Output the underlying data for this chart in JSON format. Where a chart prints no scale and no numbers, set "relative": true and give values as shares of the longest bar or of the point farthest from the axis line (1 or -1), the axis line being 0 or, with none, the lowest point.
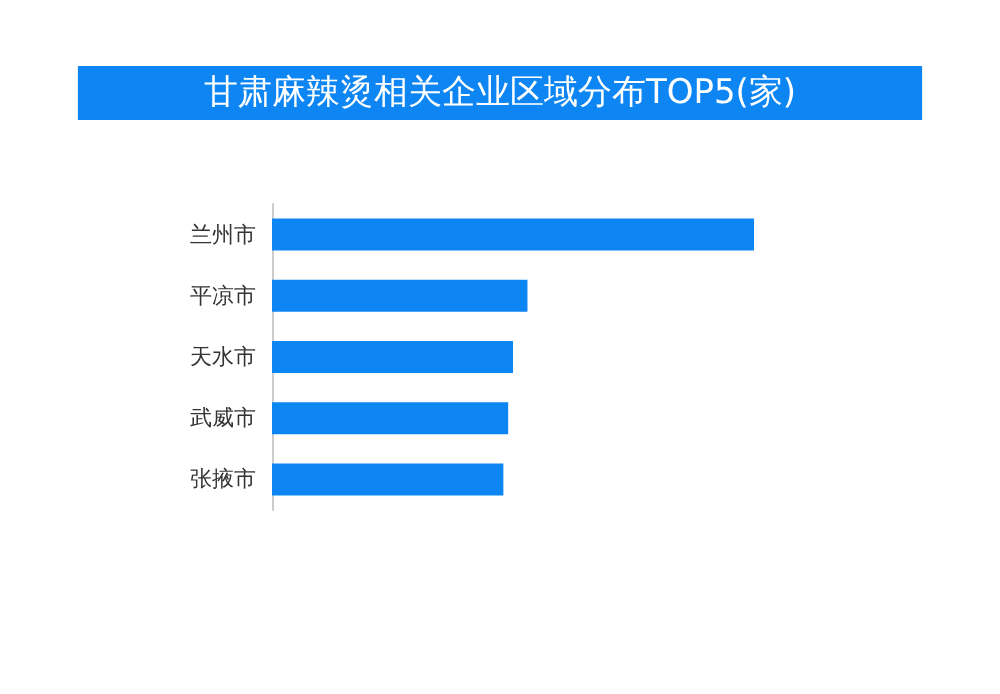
{
  "chart_data": {
    "type": "bar",
    "orientation": "horizontal",
    "relative": true,
    "title": "甘肃麻辣烫相关企业区域分布TOP5(家)",
    "categories": [
      "兰州市",
      "平凉市",
      "天水市",
      "武威市",
      "张掖市"
    ],
    "values": [
      1,
      0.53,
      0.5,
      0.49,
      0.48
    ],
    "color": "#0d86f3"
  }
}
